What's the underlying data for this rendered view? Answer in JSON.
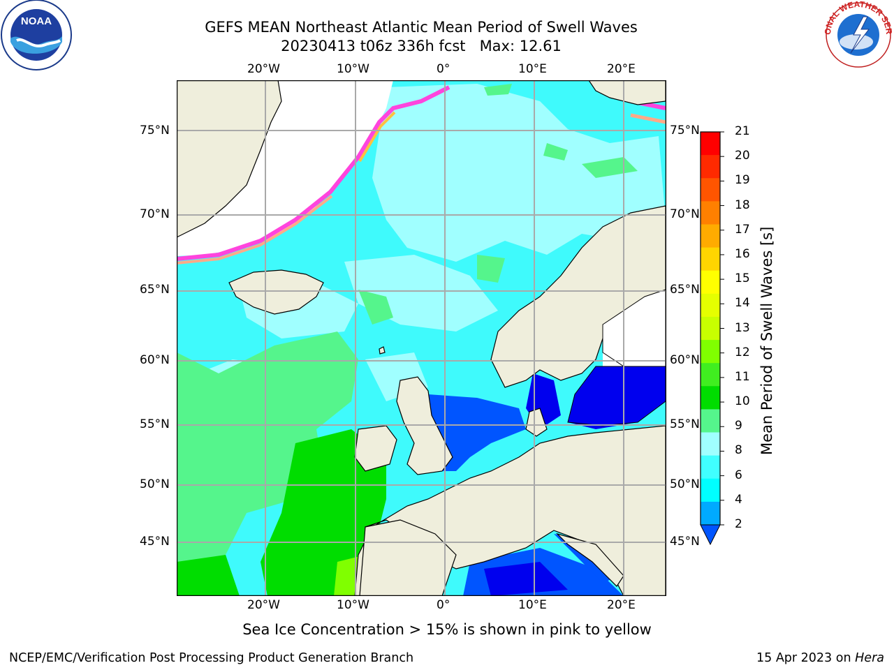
{
  "header": {
    "title_line1": "GEFS MEAN Northeast Atlantic Mean Period of Swell Waves",
    "title_line2": "20230413 t06z 336h fcst   Max: 12.61"
  },
  "logos": {
    "left": "noaa-logo",
    "right": "national-weather-service-logo",
    "right_text": "NATIONAL WEATHER SERVICE"
  },
  "map": {
    "lon_ticks_top": [
      "20°W",
      "10°W",
      "0°",
      "10°E",
      "20°E"
    ],
    "lon_ticks_bottom": [
      "20°W",
      "10°W",
      "0°",
      "10°E",
      "20°E"
    ],
    "lat_ticks_left": [
      "75°N",
      "70°N",
      "65°N",
      "60°N",
      "55°N",
      "50°N",
      "45°N"
    ],
    "lat_ticks_right": [
      "75°N",
      "70°N",
      "65°N",
      "60°N",
      "55°N",
      "50°N",
      "45°N"
    ],
    "land_color": "#efeedc",
    "ocean_base_color": "#3ffafc"
  },
  "colorbar": {
    "label": "Mean Period of Swell Waves [s]",
    "ticks": [
      "21",
      "20",
      "19",
      "18",
      "17",
      "16",
      "15",
      "14",
      "13",
      "12",
      "11",
      "10",
      "9",
      "8",
      "6",
      "4",
      "2"
    ],
    "colors": [
      "#ff0000",
      "#ff2a00",
      "#ff5500",
      "#ff8000",
      "#ffab00",
      "#ffd500",
      "#ffff00",
      "#e5ff00",
      "#c8ff00",
      "#80ff00",
      "#40ee20",
      "#00dd00",
      "#55f58c",
      "#a0ffff",
      "#40ffff",
      "#00ffff",
      "#00aaff",
      "#0055ff"
    ]
  },
  "note": "Sea Ice Concentration > 15% is shown in pink to yellow",
  "footer": {
    "left": "NCEP/EMC/Verification Post Processing Product Generation Branch",
    "date": "15 Apr 2023 on",
    "machine": "Hera"
  }
}
